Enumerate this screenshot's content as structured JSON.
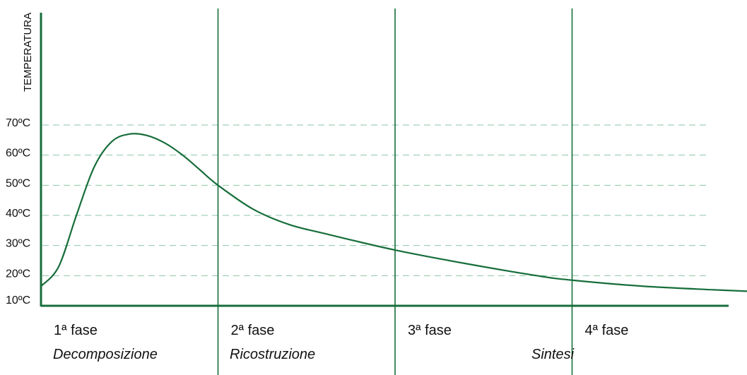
{
  "chart_data": {
    "type": "line",
    "ylabel": "TEMPERATURA",
    "ylim": [
      10,
      70
    ],
    "y_ticks": [
      {
        "value": 70,
        "label": "70ºC"
      },
      {
        "value": 60,
        "label": "60ºC"
      },
      {
        "value": 50,
        "label": "50ºC"
      },
      {
        "value": 40,
        "label": "40ºC"
      },
      {
        "value": 30,
        "label": "30ºC"
      },
      {
        "value": 20,
        "label": "20ºC"
      },
      {
        "value": 10,
        "label": "10ºC"
      }
    ],
    "grid": "horizontal dashed",
    "phases": [
      {
        "label": "1ª fase",
        "name": "Decomposizione"
      },
      {
        "label": "2ª fase",
        "name": "Ricostruzione"
      },
      {
        "label": "3ª fase",
        "name": ""
      },
      {
        "label": "4ª fase",
        "name": "Sintesi"
      }
    ],
    "xlim": [
      0,
      4
    ],
    "series": [
      {
        "x": [
          0,
          0.1,
          0.2,
          0.3,
          0.4,
          0.5,
          0.6,
          0.7,
          0.8,
          0.9,
          1.0,
          1.2,
          1.4,
          1.6,
          2.0,
          2.4,
          2.8,
          3.0,
          3.4,
          3.8,
          4.0
        ],
        "values": [
          16.5,
          23,
          40,
          56,
          64.5,
          67,
          66.5,
          64,
          60,
          55,
          50,
          42,
          37,
          34,
          28.5,
          24,
          20,
          18.5,
          16.5,
          15.3,
          14.8
        ]
      }
    ],
    "colors": {
      "line": "#176e3b",
      "axis": "#176e3b",
      "grid": "#8cc5a4"
    }
  }
}
